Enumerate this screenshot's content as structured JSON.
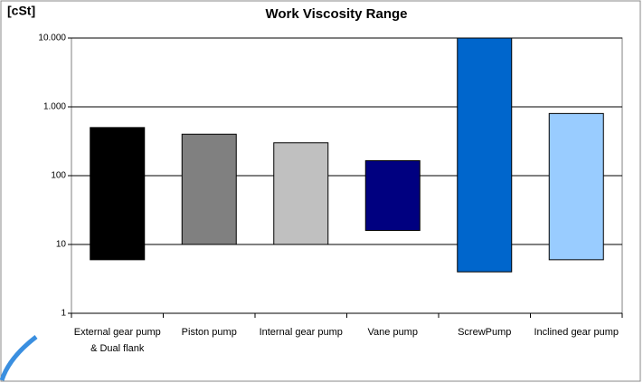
{
  "chart_data": {
    "type": "floating_bar",
    "title": "Work Viscosity Range",
    "y_label": "[cSt]",
    "categories": [
      "External gear pump & Dual flank",
      "Piston pump",
      "Internal gear pump",
      "Vane pump",
      "ScrewPump",
      "Inclined gear pump"
    ],
    "low": [
      6,
      10,
      10,
      16,
      4,
      6
    ],
    "high": [
      500,
      400,
      300,
      165,
      10000,
      800
    ],
    "colors": [
      "#000000",
      "#808080",
      "#c0c0c0",
      "#000080",
      "#0066cc",
      "#99ccff"
    ],
    "log_scale": true,
    "grid": true,
    "ylim": [
      1,
      10000
    ],
    "yticks": [
      1,
      10,
      100,
      {
        "value": 1000,
        "label": "1.000"
      },
      {
        "value": 10000,
        "label": "10.000"
      }
    ]
  }
}
